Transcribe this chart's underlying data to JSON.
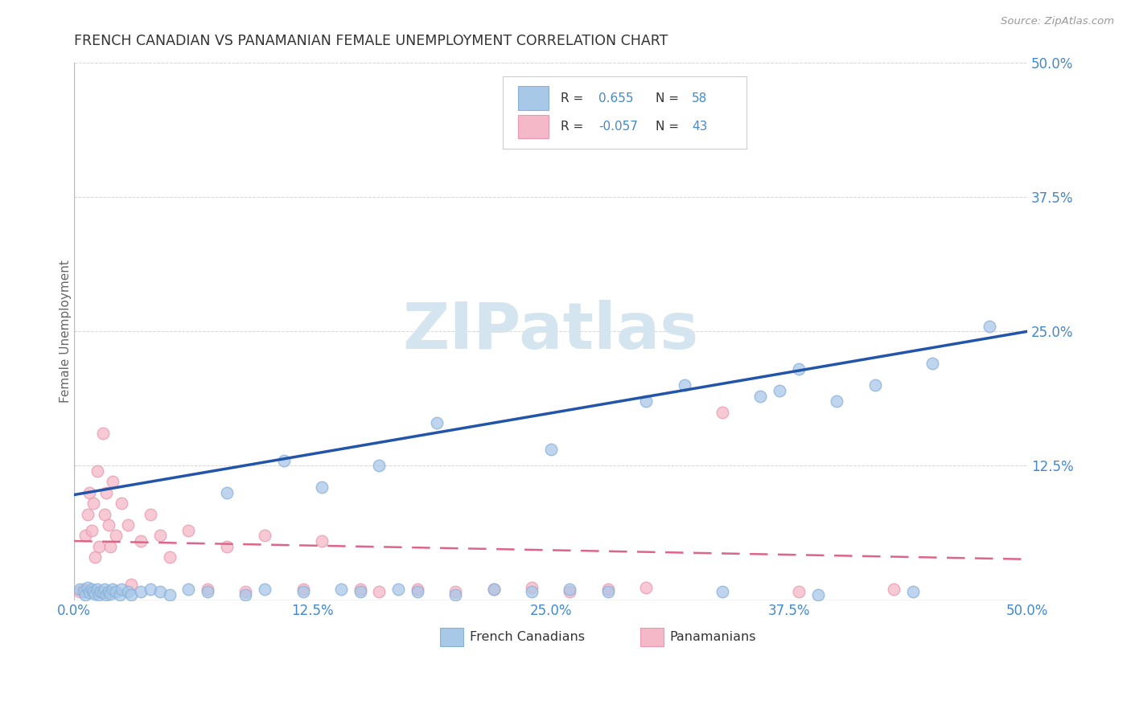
{
  "title": "FRENCH CANADIAN VS PANAMANIAN FEMALE UNEMPLOYMENT CORRELATION CHART",
  "source": "Source: ZipAtlas.com",
  "ylabel": "Female Unemployment",
  "xlim": [
    0.0,
    0.5
  ],
  "ylim": [
    0.0,
    0.5
  ],
  "xtick_labels": [
    "0.0%",
    "12.5%",
    "25.0%",
    "37.5%",
    "50.0%"
  ],
  "xtick_vals": [
    0.0,
    0.125,
    0.25,
    0.375,
    0.5
  ],
  "ytick_vals": [
    0.125,
    0.25,
    0.375,
    0.5
  ],
  "blue_R": "0.655",
  "blue_N": "58",
  "pink_R": "-0.057",
  "pink_N": "43",
  "legend_label_blue": "French Canadians",
  "legend_label_pink": "Panamanians",
  "blue_color": "#a8c8e8",
  "pink_color": "#f5b8c8",
  "blue_edge_color": "#88b0d8",
  "pink_edge_color": "#e898b0",
  "blue_line_color": "#2255aa",
  "pink_line_color": "#dd6688",
  "background_color": "#ffffff",
  "grid_color": "#cccccc",
  "title_color": "#333333",
  "axis_label_color": "#4488cc",
  "watermark_color": "#d5e5f0",
  "blue_scatter_x": [
    0.003,
    0.005,
    0.006,
    0.007,
    0.008,
    0.009,
    0.01,
    0.011,
    0.012,
    0.013,
    0.014,
    0.015,
    0.016,
    0.017,
    0.018,
    0.019,
    0.02,
    0.022,
    0.024,
    0.025,
    0.028,
    0.03,
    0.035,
    0.04,
    0.045,
    0.05,
    0.06,
    0.07,
    0.08,
    0.09,
    0.1,
    0.11,
    0.12,
    0.13,
    0.14,
    0.15,
    0.16,
    0.17,
    0.18,
    0.19,
    0.2,
    0.22,
    0.24,
    0.25,
    0.26,
    0.28,
    0.3,
    0.32,
    0.34,
    0.36,
    0.37,
    0.38,
    0.39,
    0.4,
    0.42,
    0.44,
    0.45,
    0.48
  ],
  "blue_scatter_y": [
    0.01,
    0.008,
    0.005,
    0.012,
    0.007,
    0.01,
    0.008,
    0.006,
    0.01,
    0.005,
    0.008,
    0.007,
    0.01,
    0.005,
    0.008,
    0.006,
    0.01,
    0.008,
    0.005,
    0.01,
    0.008,
    0.005,
    0.008,
    0.01,
    0.008,
    0.005,
    0.01,
    0.008,
    0.1,
    0.005,
    0.01,
    0.13,
    0.008,
    0.105,
    0.01,
    0.008,
    0.125,
    0.01,
    0.008,
    0.165,
    0.005,
    0.01,
    0.008,
    0.14,
    0.01,
    0.008,
    0.185,
    0.2,
    0.008,
    0.19,
    0.195,
    0.215,
    0.005,
    0.185,
    0.2,
    0.008,
    0.22,
    0.255
  ],
  "pink_scatter_x": [
    0.003,
    0.005,
    0.006,
    0.007,
    0.008,
    0.009,
    0.01,
    0.011,
    0.012,
    0.013,
    0.015,
    0.016,
    0.017,
    0.018,
    0.019,
    0.02,
    0.022,
    0.025,
    0.028,
    0.03,
    0.035,
    0.04,
    0.045,
    0.05,
    0.06,
    0.07,
    0.08,
    0.09,
    0.1,
    0.12,
    0.13,
    0.15,
    0.16,
    0.18,
    0.2,
    0.22,
    0.24,
    0.26,
    0.28,
    0.3,
    0.34,
    0.38,
    0.43
  ],
  "pink_scatter_y": [
    0.008,
    0.01,
    0.06,
    0.08,
    0.1,
    0.065,
    0.09,
    0.04,
    0.12,
    0.05,
    0.155,
    0.08,
    0.1,
    0.07,
    0.05,
    0.11,
    0.06,
    0.09,
    0.07,
    0.015,
    0.055,
    0.08,
    0.06,
    0.04,
    0.065,
    0.01,
    0.05,
    0.008,
    0.06,
    0.01,
    0.055,
    0.01,
    0.008,
    0.01,
    0.008,
    0.01,
    0.012,
    0.008,
    0.01,
    0.012,
    0.175,
    0.008,
    0.01
  ],
  "blue_line_x": [
    0.0,
    0.5
  ],
  "blue_line_y": [
    0.098,
    0.25
  ],
  "pink_line_x": [
    0.0,
    0.5
  ],
  "pink_line_y": [
    0.055,
    0.038
  ]
}
